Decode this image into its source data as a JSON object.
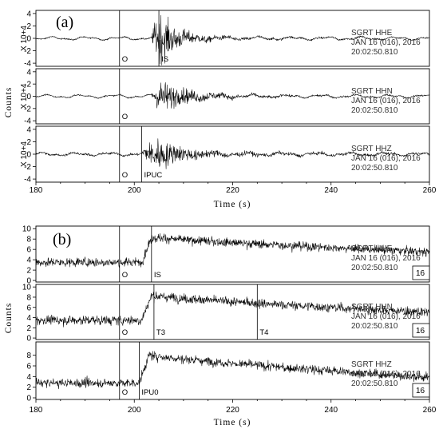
{
  "chart_data": [
    {
      "panel_label": "(a)",
      "type": "line",
      "xlabel": "Time (s)",
      "ylabel": "Counts",
      "x_ticks": [
        "180",
        "200",
        "220",
        "240",
        "260"
      ],
      "xlim": [
        180,
        260
      ],
      "traces": [
        {
          "ylim": [
            -4.5,
            4.5
          ],
          "y_ticks": [
            "4",
            "2",
            "0",
            "-2",
            "-4"
          ],
          "multiplier": "X 10+4",
          "station": "SGRT   HHE",
          "date": "JAN 16 (016), 2016",
          "time": "20:02:50.810",
          "noise_amp": 0.12,
          "onset": 203.5,
          "peak_time": 205.0,
          "peak_amp": 4.3,
          "coda_decay": 3.5,
          "picks": [
            {
              "x": 197,
              "label": "O"
            },
            {
              "x": 205,
              "label": "IS"
            }
          ]
        },
        {
          "ylim": [
            -4.5,
            4.5
          ],
          "y_ticks": [
            "4",
            "2",
            "0",
            "-2",
            "-4"
          ],
          "multiplier": "X 10+4",
          "station": "SGRT   HHN",
          "date": "JAN 16 (016), 2016",
          "time": "20:02:50.810",
          "noise_amp": 0.12,
          "onset": 203.5,
          "peak_time": 205.5,
          "peak_amp": 2.5,
          "coda_decay": 5.0,
          "picks": [
            {
              "x": 197,
              "label": "O"
            }
          ]
        },
        {
          "ylim": [
            -4.5,
            4.5
          ],
          "y_ticks": [
            "4",
            "2",
            "0",
            "-2",
            "-4"
          ],
          "multiplier": "X 10+4",
          "station": "SGRT   HHZ",
          "date": "JAN 16 (016), 2016",
          "time": "20:02:50.810",
          "noise_amp": 0.2,
          "onset": 201.5,
          "peak_time": 204.5,
          "peak_amp": 2.5,
          "coda_decay": 5.0,
          "picks": [
            {
              "x": 197,
              "label": "O"
            },
            {
              "x": 201.5,
              "label": "IPUC"
            }
          ]
        }
      ]
    },
    {
      "panel_label": "(b)",
      "type": "line",
      "xlabel": "Time (s)",
      "ylabel": "Counts",
      "x_ticks": [
        "180",
        "200",
        "220",
        "240",
        "260"
      ],
      "xlim": [
        180,
        260
      ],
      "traces": [
        {
          "ylim": [
            -0.3,
            10.5
          ],
          "y_ticks": [
            "10",
            "8",
            "6",
            "4",
            "2",
            "0"
          ],
          "station": "SGRT   HHE",
          "date": "JAN 16 (016), 2016",
          "time": "20:02:50.810",
          "box_label": "16",
          "base": 3.5,
          "step_time": 201.5,
          "peak_level": 8.5,
          "end_level": 5.5,
          "noise": 1.5,
          "picks": [
            {
              "x": 197,
              "label": "O"
            },
            {
              "x": 203.5,
              "label": "IS"
            }
          ]
        },
        {
          "ylim": [
            -0.3,
            10.5
          ],
          "y_ticks": [
            "10",
            "8",
            "6",
            "4",
            "2",
            "0"
          ],
          "station": "SGRT   HHN",
          "date": "JAN 16 (016), 2016",
          "time": "20:02:50.810",
          "box_label": "16",
          "base": 3.5,
          "step_time": 201.5,
          "peak_level": 8.5,
          "end_level": 5.0,
          "noise": 1.6,
          "picks": [
            {
              "x": 197,
              "label": "O"
            },
            {
              "x": 204,
              "label": "T3"
            },
            {
              "x": 225,
              "label": "T4"
            }
          ]
        },
        {
          "ylim": [
            -0.3,
            10.5
          ],
          "y_ticks": [
            "8",
            "6",
            "4",
            "2",
            "0"
          ],
          "station": "SGRT   HHZ",
          "date": "JAN 16 (016), 2016",
          "time": "20:02:50.810",
          "box_label": "16",
          "base": 2.8,
          "step_time": 201.0,
          "peak_level": 8.3,
          "end_level": 3.8,
          "noise": 1.5,
          "picks": [
            {
              "x": 197,
              "label": "O"
            },
            {
              "x": 201,
              "label": "IPU0"
            }
          ]
        }
      ]
    }
  ]
}
